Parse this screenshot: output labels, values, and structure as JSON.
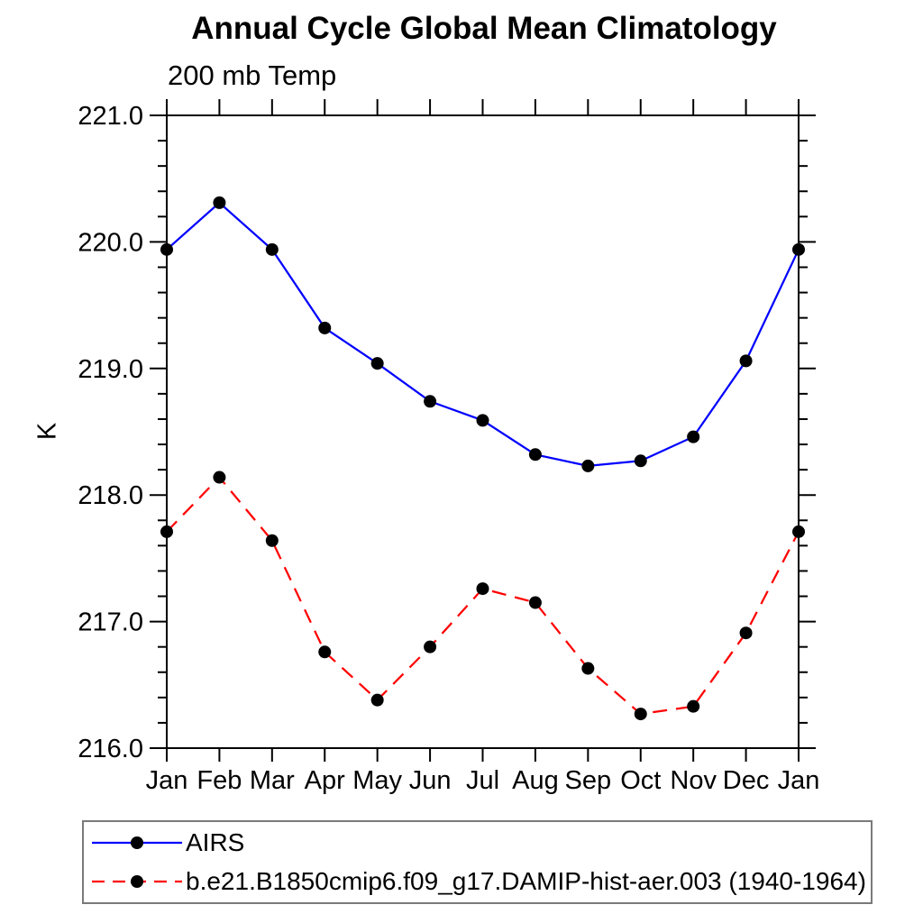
{
  "chart_data": {
    "type": "line",
    "title": "Annual Cycle Global Mean Climatology",
    "subtitle": "200 mb Temp",
    "ylabel": "K",
    "xlabel": "",
    "x_categories": [
      "Jan",
      "Feb",
      "Mar",
      "Apr",
      "May",
      "Jun",
      "Jul",
      "Aug",
      "Sep",
      "Oct",
      "Nov",
      "Dec",
      "Jan"
    ],
    "ylim": [
      216.0,
      221.0
    ],
    "ytick_labels": [
      "216.0",
      "217.0",
      "218.0",
      "219.0",
      "220.0",
      "221.0"
    ],
    "ytick_interval": 1.0,
    "minor_tick_interval": 0.2,
    "grid": false,
    "legend_position": "bottom-left box",
    "series": [
      {
        "name": "AIRS",
        "color": "#0000ff",
        "line_style": "solid",
        "marker": "filled-circle",
        "marker_color": "#000000",
        "values": [
          219.94,
          220.31,
          219.94,
          219.32,
          219.04,
          218.74,
          218.59,
          218.32,
          218.23,
          218.27,
          218.46,
          219.06,
          219.94
        ]
      },
      {
        "name": "b.e21.B1850cmip6.f09_g17.DAMIP-hist-aer.003 (1940-1964)",
        "color": "#ff0000",
        "line_style": "dashed",
        "marker": "filled-circle",
        "marker_color": "#000000",
        "values": [
          217.71,
          218.14,
          217.64,
          216.76,
          216.38,
          216.8,
          217.26,
          217.15,
          216.63,
          216.27,
          216.33,
          216.91,
          217.71
        ]
      }
    ]
  }
}
